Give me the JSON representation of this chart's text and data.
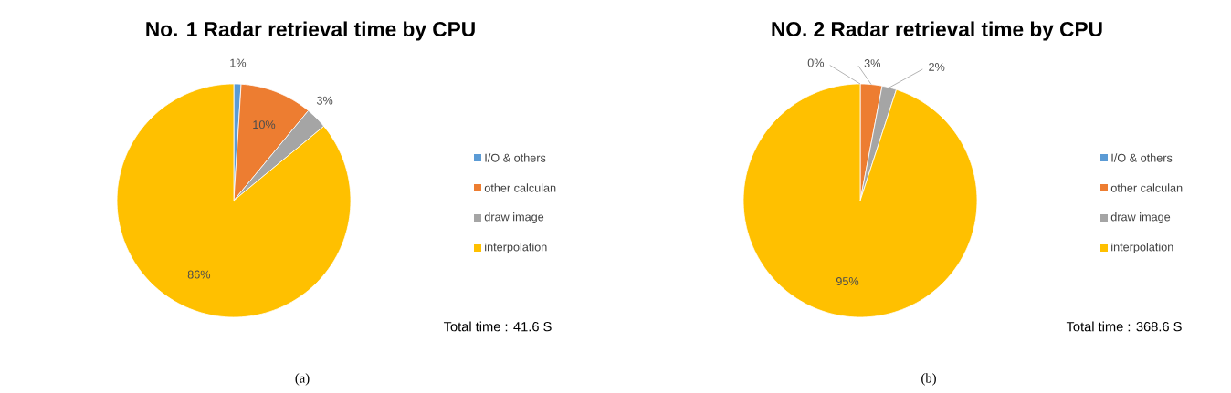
{
  "chart_data": [
    {
      "type": "pie",
      "title": "No. 1 Radar retrieval time by CPU",
      "categories": [
        "I/O & others",
        "other calculan",
        "draw image",
        "interpolation"
      ],
      "values": [
        1,
        10,
        3,
        86
      ],
      "value_labels": [
        "1%",
        "10%",
        "3%",
        "86%"
      ],
      "colors": [
        "#5b9bd5",
        "#ed7d31",
        "#a5a5a5",
        "#ffc000"
      ],
      "legend": "right",
      "annotations": [
        "Total time : 41.6 S",
        "(a)"
      ]
    },
    {
      "type": "pie",
      "title": "NO. 2 Radar retrieval time by CPU",
      "categories": [
        "I/O & others",
        "other calculan",
        "draw image",
        "interpolation"
      ],
      "values": [
        0,
        3,
        2,
        95
      ],
      "value_labels": [
        "0%",
        "3%",
        "2%",
        "95%"
      ],
      "colors": [
        "#5b9bd5",
        "#ed7d31",
        "#a5a5a5",
        "#ffc000"
      ],
      "legend": "right",
      "annotations": [
        "Total time : 368.6 S",
        "(b)"
      ]
    }
  ]
}
